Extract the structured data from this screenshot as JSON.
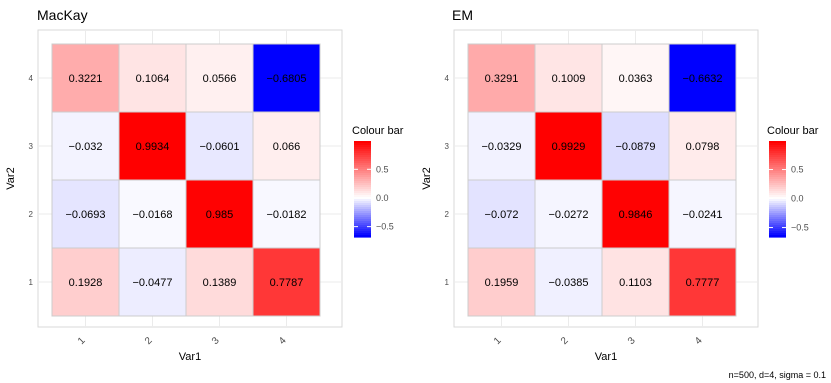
{
  "chart_data": [
    {
      "type": "heatmap",
      "title": "MacKay",
      "xlabel": "Var1",
      "ylabel": "Var2",
      "x_categories": [
        "1",
        "2",
        "3",
        "4"
      ],
      "y_categories": [
        "1",
        "2",
        "3",
        "4"
      ],
      "cells": [
        {
          "x": "1",
          "y": "4",
          "value": 0.3221,
          "label": "0.3221"
        },
        {
          "x": "2",
          "y": "4",
          "value": 0.1064,
          "label": "0.1064"
        },
        {
          "x": "3",
          "y": "4",
          "value": 0.0566,
          "label": "0.0566"
        },
        {
          "x": "4",
          "y": "4",
          "value": -0.6805,
          "label": "−0.6805"
        },
        {
          "x": "1",
          "y": "3",
          "value": -0.032,
          "label": "−0.032"
        },
        {
          "x": "2",
          "y": "3",
          "value": 0.9934,
          "label": "0.9934"
        },
        {
          "x": "3",
          "y": "3",
          "value": -0.0601,
          "label": "−0.0601"
        },
        {
          "x": "4",
          "y": "3",
          "value": 0.066,
          "label": "0.066"
        },
        {
          "x": "1",
          "y": "2",
          "value": -0.0693,
          "label": "−0.0693"
        },
        {
          "x": "2",
          "y": "2",
          "value": -0.0168,
          "label": "−0.0168"
        },
        {
          "x": "3",
          "y": "2",
          "value": 0.985,
          "label": "0.985"
        },
        {
          "x": "4",
          "y": "2",
          "value": -0.0182,
          "label": "−0.0182"
        },
        {
          "x": "1",
          "y": "1",
          "value": 0.1928,
          "label": "0.1928"
        },
        {
          "x": "2",
          "y": "1",
          "value": -0.0477,
          "label": "−0.0477"
        },
        {
          "x": "3",
          "y": "1",
          "value": 0.1389,
          "label": "0.1389"
        },
        {
          "x": "4",
          "y": "1",
          "value": 0.7787,
          "label": "0.7787"
        }
      ],
      "legend": {
        "title": "Colour bar",
        "ticks": [
          0.5,
          0.0,
          -0.5
        ],
        "tick_labels": [
          "0.5",
          "0.0",
          "−0.5"
        ],
        "range": [
          -0.6805,
          0.9934
        ],
        "placement": "right"
      }
    },
    {
      "type": "heatmap",
      "title": "EM",
      "xlabel": "Var1",
      "ylabel": "Var2",
      "x_categories": [
        "1",
        "2",
        "3",
        "4"
      ],
      "y_categories": [
        "1",
        "2",
        "3",
        "4"
      ],
      "cells": [
        {
          "x": "1",
          "y": "4",
          "value": 0.3291,
          "label": "0.3291"
        },
        {
          "x": "2",
          "y": "4",
          "value": 0.1009,
          "label": "0.1009"
        },
        {
          "x": "3",
          "y": "4",
          "value": 0.0363,
          "label": "0.0363"
        },
        {
          "x": "4",
          "y": "4",
          "value": -0.6632,
          "label": "−0.6632"
        },
        {
          "x": "1",
          "y": "3",
          "value": -0.0329,
          "label": "−0.0329"
        },
        {
          "x": "2",
          "y": "3",
          "value": 0.9929,
          "label": "0.9929"
        },
        {
          "x": "3",
          "y": "3",
          "value": -0.0879,
          "label": "−0.0879"
        },
        {
          "x": "4",
          "y": "3",
          "value": 0.0798,
          "label": "0.0798"
        },
        {
          "x": "1",
          "y": "2",
          "value": -0.072,
          "label": "−0.072"
        },
        {
          "x": "2",
          "y": "2",
          "value": -0.0272,
          "label": "−0.0272"
        },
        {
          "x": "3",
          "y": "2",
          "value": 0.9846,
          "label": "0.9846"
        },
        {
          "x": "4",
          "y": "2",
          "value": -0.0241,
          "label": "−0.0241"
        },
        {
          "x": "1",
          "y": "1",
          "value": 0.1959,
          "label": "0.1959"
        },
        {
          "x": "2",
          "y": "1",
          "value": -0.0385,
          "label": "−0.0385"
        },
        {
          "x": "3",
          "y": "1",
          "value": 0.1103,
          "label": "0.1103"
        },
        {
          "x": "4",
          "y": "1",
          "value": 0.7777,
          "label": "0.7777"
        }
      ],
      "legend": {
        "title": "Colour bar",
        "ticks": [
          0.5,
          0.0,
          -0.5
        ],
        "tick_labels": [
          "0.5",
          "0.0",
          "−0.5"
        ],
        "range": [
          -0.6632,
          0.9929
        ],
        "placement": "right"
      }
    }
  ],
  "caption": "n=500, d=4, sigma = 0.1",
  "colors": {
    "low": "#0000ff",
    "mid": "#ffffff",
    "high": "#ff0000",
    "panel_background": "#ffffff",
    "grid": "#ebebeb",
    "cell_border": "#cccccc",
    "text": "#000000",
    "axis_text": "#4d4d4d"
  },
  "grid": true
}
